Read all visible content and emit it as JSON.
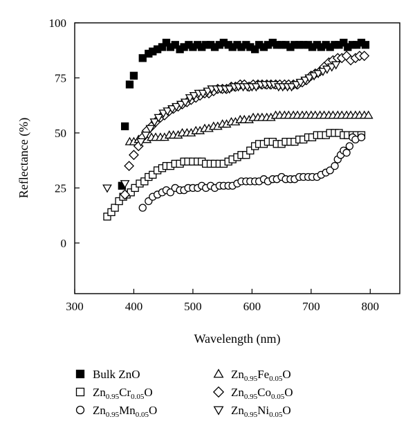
{
  "chart_data": {
    "type": "scatter",
    "xlabel": "Wavelength (nm)",
    "ylabel": "Reflectance (%)",
    "xlim": [
      300,
      850
    ],
    "ylim": [
      -23,
      100
    ],
    "xticks": [
      300,
      400,
      500,
      600,
      700,
      800
    ],
    "yticks": [
      0,
      25,
      50,
      75,
      100
    ],
    "grid": false,
    "legend_position": "bottom",
    "series": [
      {
        "name": "Bulk ZnO",
        "marker": "square-filled",
        "legend": {
          "pre": "Bulk ZnO",
          "sub1": "",
          "mid": "",
          "sub2": "",
          "post": ""
        },
        "x": [
          380,
          385,
          393,
          400,
          415,
          425,
          432,
          440,
          448,
          455,
          462,
          470,
          478,
          485,
          493,
          500,
          508,
          515,
          522,
          530,
          537,
          545,
          552,
          560,
          567,
          575,
          582,
          590,
          597,
          605,
          612,
          620,
          627,
          635,
          642,
          650,
          657,
          665,
          672,
          680,
          687,
          695,
          702,
          710,
          717,
          725,
          732,
          740,
          747,
          755,
          762,
          770,
          777,
          785,
          792
        ],
        "y": [
          26,
          53,
          72,
          76,
          84,
          86,
          87,
          88,
          89,
          91,
          89,
          90,
          88,
          89,
          90,
          89,
          90,
          89,
          90,
          90,
          89,
          90,
          91,
          90,
          89,
          90,
          89,
          90,
          89,
          88,
          90,
          89,
          90,
          91,
          90,
          90,
          90,
          89,
          90,
          90,
          90,
          90,
          89,
          90,
          89,
          90,
          89,
          90,
          90,
          91,
          89,
          90,
          90,
          91,
          90
        ]
      },
      {
        "name": "Zn0.95Cr0.05O",
        "marker": "square-open",
        "legend": {
          "pre": "Zn",
          "sub1": "0.95",
          "mid": "Cr",
          "sub2": "0.05",
          "post": "O"
        },
        "x": [
          355,
          362,
          368,
          375,
          382,
          388,
          395,
          402,
          410,
          418,
          425,
          432,
          440,
          448,
          455,
          462,
          470,
          478,
          485,
          492,
          500,
          508,
          515,
          522,
          530,
          537,
          545,
          552,
          560,
          567,
          575,
          582,
          590,
          597,
          605,
          612,
          620,
          627,
          635,
          642,
          650,
          657,
          665,
          672,
          680,
          687,
          695,
          702,
          710,
          717,
          725,
          732,
          740,
          747,
          755,
          762,
          770,
          777,
          785
        ],
        "y": [
          12,
          14,
          16,
          19,
          21,
          22,
          23,
          25,
          27,
          28,
          30,
          31,
          33,
          34,
          35,
          35,
          36,
          36,
          37,
          37,
          37,
          37,
          37,
          36,
          36,
          36,
          36,
          36,
          37,
          38,
          39,
          40,
          40,
          42,
          44,
          45,
          45,
          46,
          46,
          45,
          45,
          46,
          46,
          46,
          47,
          47,
          48,
          48,
          49,
          49,
          49,
          50,
          50,
          50,
          49,
          49,
          49,
          49,
          49
        ]
      },
      {
        "name": "Zn0.95Mn0.05O",
        "marker": "circle-open",
        "legend": {
          "pre": "Zn",
          "sub1": "0.95",
          "mid": "Mn",
          "sub2": "0.05",
          "post": "O"
        },
        "x": [
          415,
          425,
          432,
          440,
          448,
          455,
          462,
          470,
          478,
          485,
          492,
          500,
          508,
          515,
          522,
          530,
          537,
          545,
          552,
          560,
          567,
          575,
          582,
          590,
          597,
          605,
          612,
          620,
          627,
          635,
          642,
          650,
          657,
          665,
          672,
          680,
          687,
          695,
          702,
          710,
          717,
          725,
          732,
          740,
          745,
          750,
          755,
          760,
          765,
          770,
          775,
          785
        ],
        "y": [
          16,
          19,
          21,
          22,
          23,
          24,
          23,
          25,
          24,
          24,
          25,
          25,
          25,
          26,
          25,
          26,
          25,
          26,
          26,
          26,
          26,
          27,
          28,
          28,
          28,
          28,
          28,
          29,
          28,
          29,
          29,
          30,
          29,
          29,
          29,
          30,
          30,
          30,
          30,
          30,
          31,
          32,
          33,
          35,
          38,
          40,
          42,
          41,
          44,
          48,
          47,
          48
        ]
      },
      {
        "name": "Zn0.95Fe0.05O",
        "marker": "triangle-up-open",
        "legend": {
          "pre": "Zn",
          "sub1": "0.95",
          "mid": "Fe",
          "sub2": "0.05",
          "post": "O"
        },
        "x": [
          393,
          400,
          408,
          415,
          422,
          430,
          437,
          445,
          452,
          460,
          467,
          475,
          482,
          490,
          497,
          505,
          512,
          520,
          527,
          535,
          542,
          550,
          557,
          565,
          572,
          580,
          587,
          595,
          602,
          610,
          617,
          625,
          632,
          640,
          647,
          655,
          662,
          670,
          677,
          685,
          692,
          700,
          707,
          715,
          722,
          730,
          737,
          745,
          752,
          760,
          767,
          775,
          782,
          790,
          797
        ],
        "y": [
          46,
          46,
          47,
          47,
          47,
          48,
          48,
          48,
          48,
          49,
          49,
          49,
          50,
          50,
          50,
          51,
          51,
          52,
          52,
          53,
          53,
          54,
          54,
          55,
          55,
          56,
          56,
          56,
          57,
          57,
          57,
          57,
          57,
          58,
          58,
          58,
          58,
          58,
          58,
          58,
          58,
          58,
          58,
          58,
          58,
          58,
          58,
          58,
          58,
          58,
          58,
          58,
          58,
          58,
          58
        ]
      },
      {
        "name": "Zn0.95Co0.05O",
        "marker": "diamond-open",
        "legend": {
          "pre": "Zn",
          "sub1": "0.95",
          "mid": "Co",
          "sub2": "0.05",
          "post": "O"
        },
        "x": [
          385,
          392,
          400,
          408,
          415,
          422,
          430,
          437,
          445,
          452,
          460,
          467,
          475,
          482,
          490,
          497,
          505,
          512,
          520,
          527,
          535,
          542,
          550,
          557,
          565,
          572,
          580,
          587,
          595,
          602,
          610,
          617,
          625,
          632,
          640,
          647,
          655,
          662,
          670,
          677,
          685,
          692,
          700,
          707,
          715,
          722,
          730,
          737,
          745,
          752,
          760,
          767,
          775,
          782,
          790
        ],
        "y": [
          22,
          35,
          40,
          44,
          48,
          51,
          53,
          55,
          57,
          58,
          60,
          61,
          62,
          63,
          64,
          65,
          66,
          67,
          68,
          68,
          69,
          70,
          70,
          70,
          71,
          71,
          72,
          72,
          71,
          72,
          72,
          72,
          72,
          72,
          72,
          72,
          72,
          72,
          72,
          72,
          73,
          74,
          76,
          77,
          78,
          80,
          82,
          83,
          84,
          84,
          85,
          83,
          84,
          85,
          85
        ]
      },
      {
        "name": "Zn0.95Ni0.05O",
        "marker": "triangle-down-open",
        "legend": {
          "pre": "Zn",
          "sub1": "0.95",
          "mid": "Ni",
          "sub2": "0.05",
          "post": "O"
        },
        "x": [
          355,
          385,
          412,
          420,
          428,
          435,
          442,
          450,
          457,
          465,
          472,
          480,
          487,
          495,
          502,
          510,
          517,
          525,
          532,
          540,
          547,
          555,
          562,
          570,
          577,
          585,
          592,
          600,
          607,
          615,
          622,
          630,
          637,
          645,
          652,
          660,
          667,
          675,
          682,
          690,
          697,
          705,
          712,
          720,
          727,
          735,
          742
        ],
        "y": [
          25,
          27,
          46,
          49,
          52,
          55,
          57,
          59,
          60,
          61,
          62,
          63,
          64,
          66,
          67,
          68,
          68,
          69,
          70,
          70,
          70,
          70,
          70,
          71,
          71,
          71,
          71,
          71,
          71,
          72,
          72,
          72,
          72,
          71,
          71,
          71,
          71,
          72,
          73,
          74,
          75,
          76,
          77,
          78,
          79,
          80,
          81
        ]
      }
    ]
  }
}
